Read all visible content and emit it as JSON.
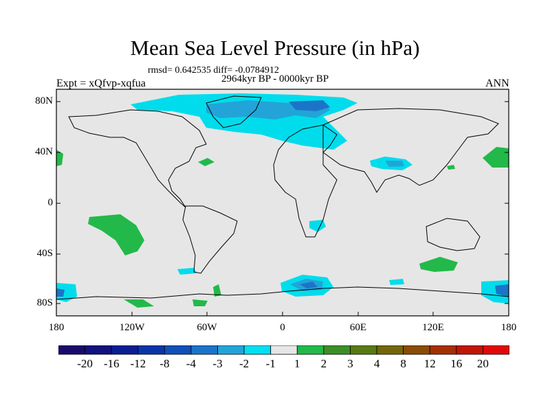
{
  "title": "Mean Sea Level Pressure (in hPa)",
  "stats": "rmsd= 0.642535 diff= -0.0784912",
  "period": "2964kyr BP - 0000kyr BP",
  "expt": "Expt = xQfvp-xqfua",
  "season": "ANN",
  "lat_labels": [
    "80N",
    "40N",
    "0",
    "40S",
    "80S"
  ],
  "lon_labels": [
    "180",
    "120W",
    "60W",
    "0",
    "60E",
    "120E",
    "180"
  ],
  "colorbar": {
    "labels": [
      "-20",
      "-16",
      "-12",
      "-8",
      "-4",
      "-3",
      "-2",
      "-1",
      "1",
      "2",
      "3",
      "4",
      "8",
      "12",
      "16",
      "20"
    ],
    "colors": [
      "#1a0a6b",
      "#12127f",
      "#0a1e94",
      "#0a35a8",
      "#1050b8",
      "#1c74c8",
      "#22a4d8",
      "#00e0f0",
      "#e6e6e6",
      "#22b94a",
      "#3e8e28",
      "#587a14",
      "#74660a",
      "#8a4c06",
      "#a43004",
      "#c01606",
      "#e00a0a"
    ]
  },
  "colors": {
    "land_sea_bg": "#e6e6e6",
    "neg_weak": "#00dcec",
    "neg_mid": "#22a4d8",
    "neg_strong": "#1c74c8",
    "pos_weak": "#22b94a"
  }
}
